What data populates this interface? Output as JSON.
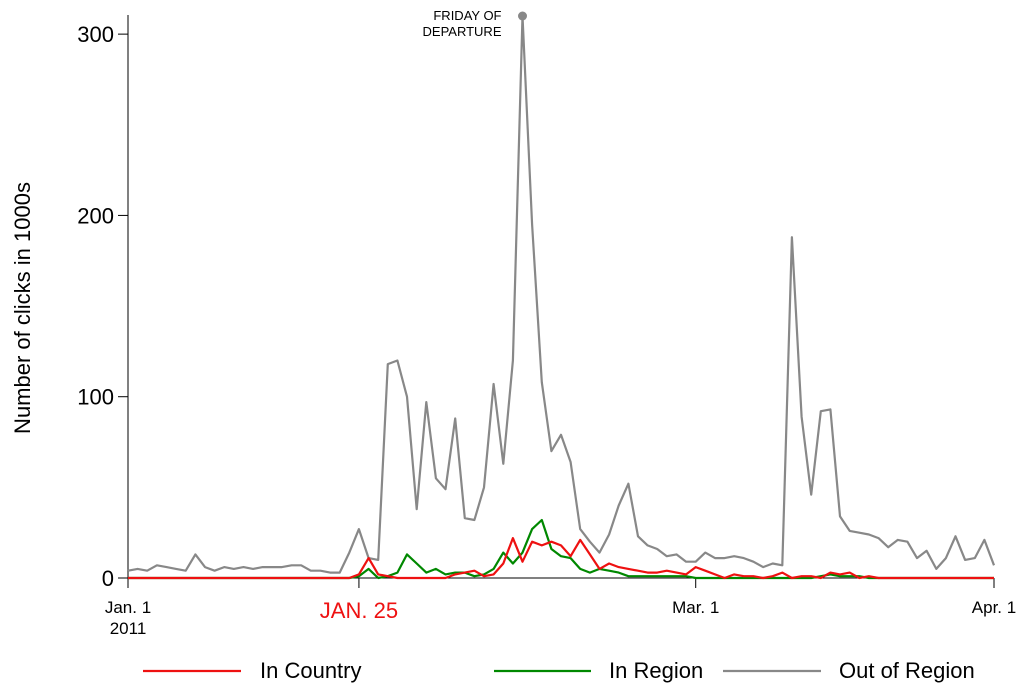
{
  "chart_data": {
    "type": "line",
    "ylabel": "Number of clicks in 1000s",
    "xlabel": "",
    "ylim": [
      0,
      310
    ],
    "xlim": [
      "2011-01-01",
      "2011-04-01"
    ],
    "y_ticks": [
      0,
      100,
      200,
      300
    ],
    "x_ticks": [
      {
        "date": "2011-01-01",
        "label": "Jan. 1",
        "sublabel": "2011",
        "color": "#000000"
      },
      {
        "date": "2011-01-25",
        "label": "JAN. 25",
        "sublabel": "",
        "color": "#ee1111"
      },
      {
        "date": "2011-03-01",
        "label": "Mar. 1",
        "sublabel": "",
        "color": "#000000"
      },
      {
        "date": "2011-04-01",
        "label": "Apr. 1",
        "sublabel": "",
        "color": "#000000"
      }
    ],
    "annotation": {
      "date": "2011-02-11",
      "y": 310,
      "lines": [
        "FRIDAY OF",
        "DEPARTURE"
      ]
    },
    "grid": false,
    "legend": "bottom",
    "series": [
      {
        "name": "In Country",
        "color": "#ee1111",
        "start": "2011-01-01",
        "values": [
          0,
          0,
          0,
          0,
          0,
          0,
          0,
          0,
          0,
          0,
          0,
          0,
          0,
          0,
          0,
          0,
          0,
          0,
          0,
          0,
          0,
          0,
          0,
          0,
          2,
          11,
          2,
          1,
          0,
          0,
          0,
          0,
          0,
          0,
          2,
          3,
          4,
          1,
          2,
          8,
          22,
          9,
          20,
          18,
          20,
          18,
          12,
          21,
          13,
          5,
          8,
          6,
          5,
          4,
          3,
          3,
          4,
          3,
          2,
          6,
          4,
          2,
          0,
          2,
          1,
          1,
          0,
          1,
          3,
          0,
          1,
          1,
          0,
          3,
          2,
          3,
          0,
          1,
          0,
          0,
          0,
          0,
          0,
          0,
          0,
          0,
          0,
          0,
          0,
          0,
          0
        ]
      },
      {
        "name": "In Region",
        "color": "#008800",
        "start": "2011-01-01",
        "values": [
          0,
          0,
          0,
          0,
          0,
          0,
          0,
          0,
          0,
          0,
          0,
          0,
          0,
          0,
          0,
          0,
          0,
          0,
          0,
          0,
          0,
          0,
          0,
          0,
          1,
          5,
          0,
          1,
          3,
          13,
          8,
          3,
          5,
          2,
          3,
          3,
          1,
          2,
          5,
          14,
          8,
          14,
          27,
          32,
          16,
          12,
          11,
          5,
          3,
          5,
          4,
          3,
          1,
          1,
          1,
          1,
          1,
          1,
          1,
          0,
          0,
          0,
          0,
          0,
          0,
          0,
          0,
          0,
          0,
          0,
          0,
          0,
          1,
          2,
          1,
          1,
          1,
          0,
          0,
          0,
          0,
          0,
          0,
          0,
          0,
          0,
          0,
          0,
          0,
          0,
          0
        ]
      },
      {
        "name": "Out of Region",
        "color": "#888888",
        "start": "2011-01-01",
        "values": [
          4,
          5,
          4,
          7,
          6,
          5,
          4,
          13,
          6,
          4,
          6,
          5,
          6,
          5,
          6,
          6,
          6,
          7,
          7,
          4,
          4,
          3,
          3,
          14,
          27,
          11,
          10,
          118,
          120,
          100,
          38,
          97,
          55,
          49,
          88,
          33,
          32,
          50,
          107,
          63,
          120,
          310,
          195,
          108,
          70,
          79,
          64,
          27,
          20,
          14,
          24,
          40,
          52,
          23,
          18,
          16,
          12,
          13,
          9,
          9,
          14,
          11,
          11,
          12,
          11,
          9,
          6,
          8,
          7,
          188,
          89,
          46,
          92,
          93,
          34,
          26,
          25,
          24,
          22,
          17,
          21,
          20,
          11,
          15,
          5,
          11,
          23,
          10,
          11,
          21,
          7
        ]
      }
    ]
  }
}
